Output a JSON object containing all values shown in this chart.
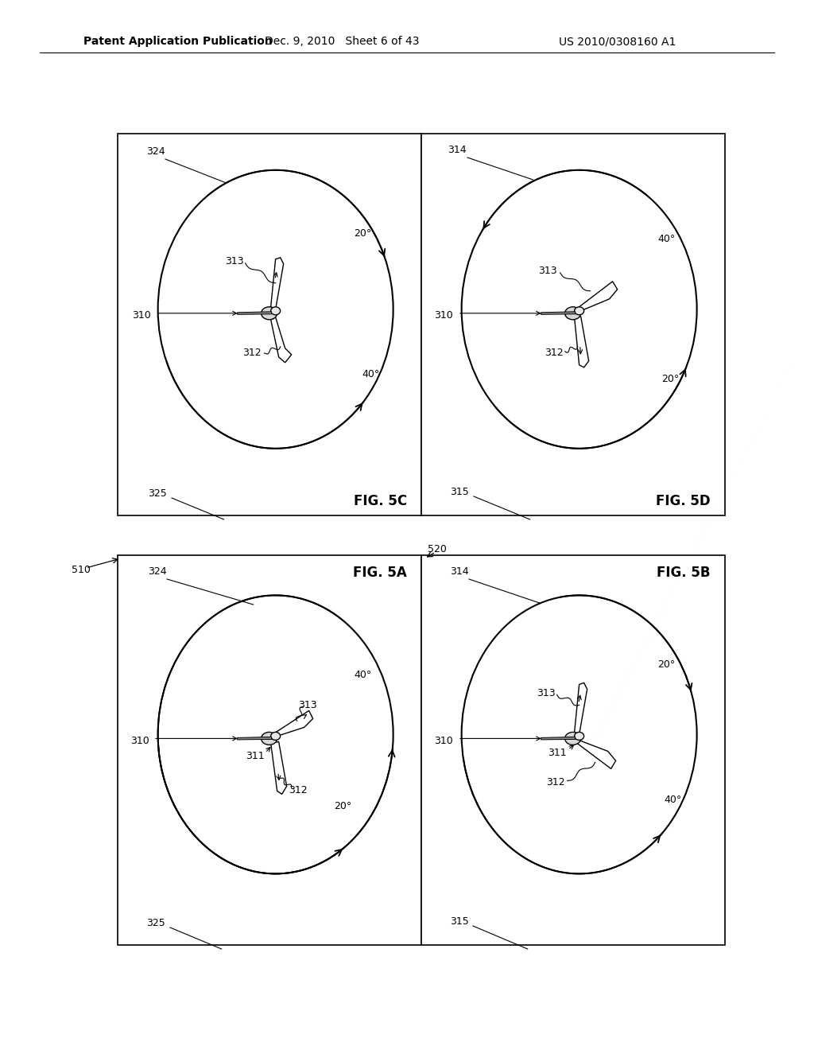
{
  "bg_color": "#ffffff",
  "header_left": "Patent Application Publication",
  "header_mid": "Dec. 9, 2010   Sheet 6 of 43",
  "header_right": "US 2010/0308160 A1",
  "panels": {
    "5C": [
      148,
      168,
      382,
      480
    ],
    "5D": [
      530,
      168,
      382,
      480
    ],
    "5A": [
      148,
      698,
      382,
      490
    ],
    "5B": [
      530,
      698,
      382,
      490
    ]
  },
  "ref_510": "510",
  "ref_520": "520"
}
